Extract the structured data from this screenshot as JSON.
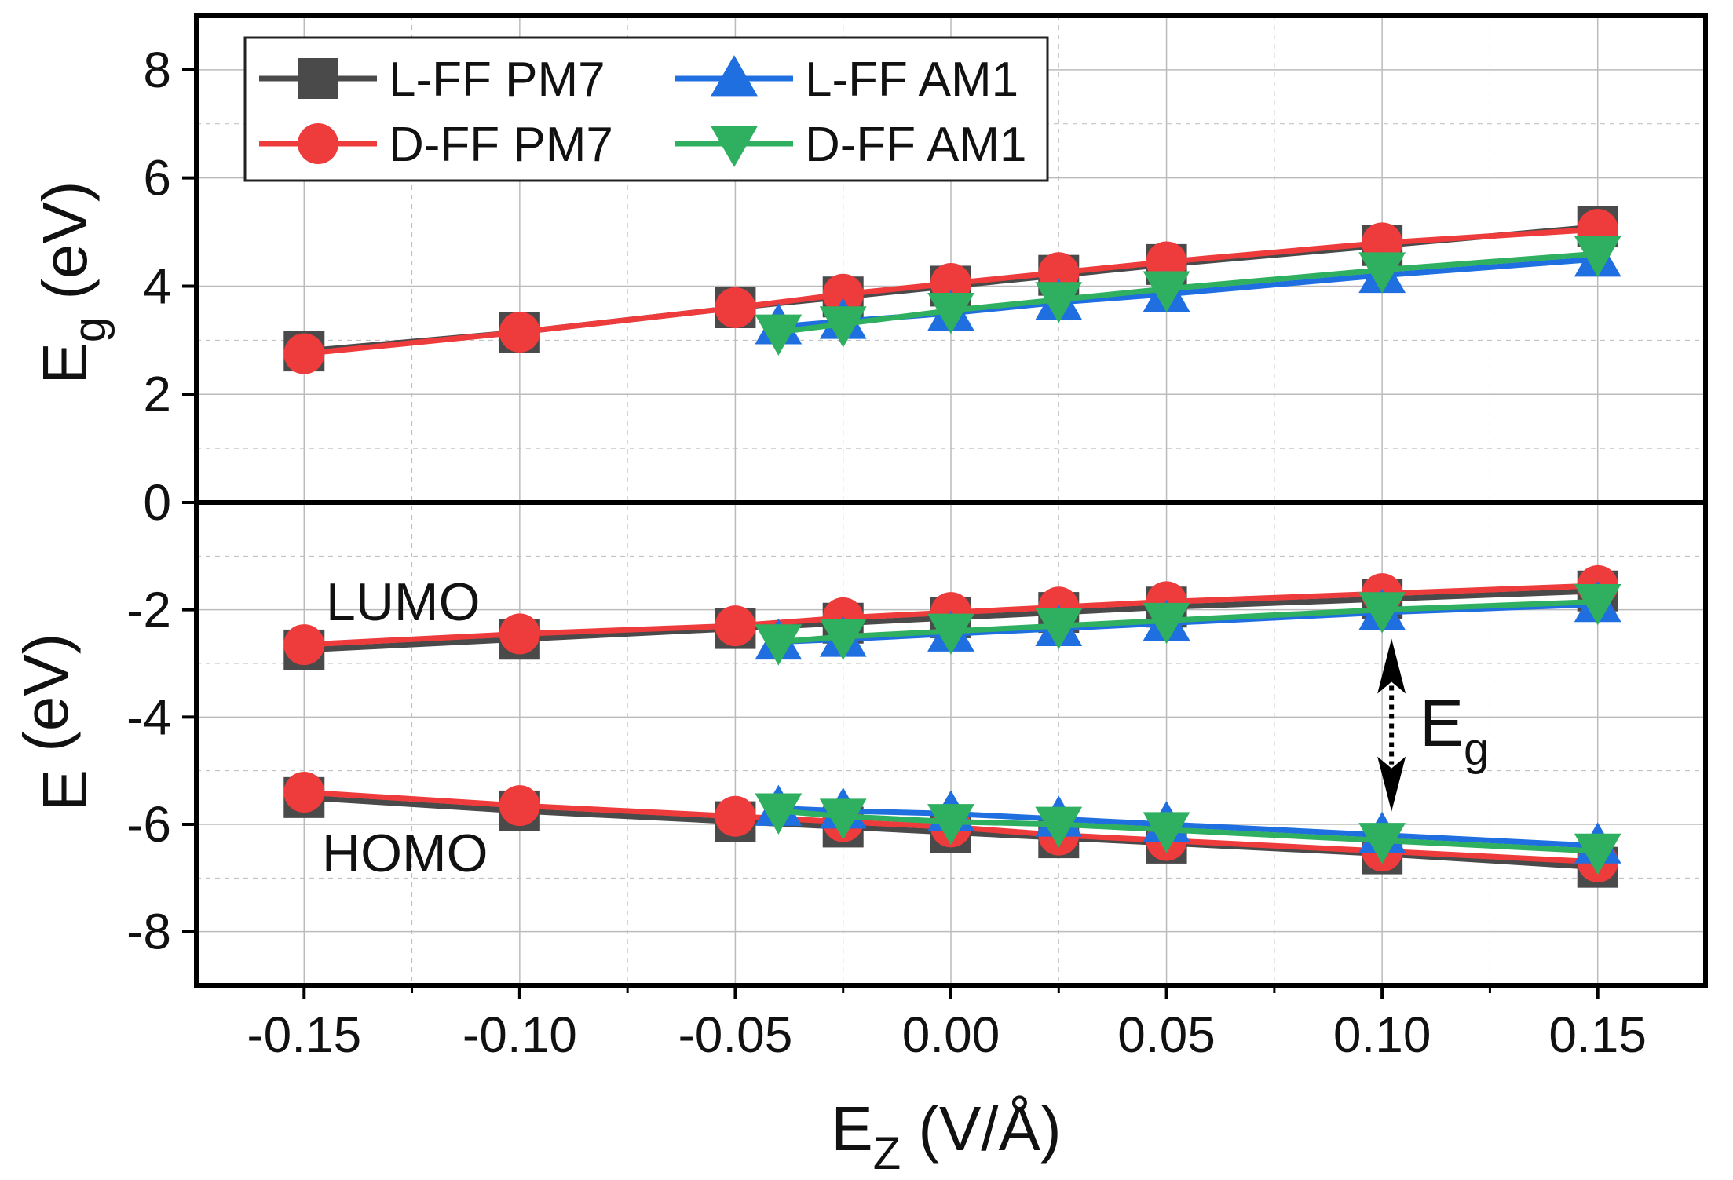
{
  "chart_data": {
    "type": "line",
    "colors": {
      "L-FF PM7": "#4a4a4a",
      "D-FF PM7": "#ee3b3b",
      "L-FF AM1": "#1f6fe0",
      "D-FF AM1": "#2fb060",
      "frame": "#000000",
      "grid": "#bbbbbb"
    },
    "xaxis": {
      "label_main": "E",
      "label_sub": "Z",
      "label_rest": " (V/Å)",
      "range": [
        -0.175,
        0.175
      ],
      "ticks": [
        -0.15,
        -0.1,
        -0.05,
        0.0,
        0.05,
        0.1,
        0.15
      ],
      "tick_labels": [
        "-0.15",
        "-0.10",
        "-0.05",
        "0.00",
        "0.05",
        "0.10",
        "0.15"
      ]
    },
    "legend": [
      {
        "label": "L-FF PM7",
        "marker": "square",
        "color": "#4a4a4a"
      },
      {
        "label": "L-FF AM1",
        "marker": "triangle-up",
        "color": "#1f6fe0"
      },
      {
        "label": "D-FF PM7",
        "marker": "circle",
        "color": "#ee3b3b"
      },
      {
        "label": "D-FF AM1",
        "marker": "triangle-down",
        "color": "#2fb060"
      }
    ],
    "panels": [
      {
        "id": "top",
        "ylabel_main": "E",
        "ylabel_sub": "g",
        "ylabel_rest": " (eV)",
        "yrange": [
          0,
          9
        ],
        "yticks": [
          0,
          2,
          4,
          6,
          8
        ],
        "ytick_labels": [
          "0",
          "2",
          "4",
          "6",
          "8"
        ],
        "series": [
          {
            "name": "L-FF PM7",
            "marker": "square",
            "color": "#4a4a4a",
            "x": [
              -0.15,
              -0.1,
              -0.05,
              -0.025,
              0.0,
              0.025,
              0.05,
              0.1,
              0.15
            ],
            "y": [
              2.8,
              3.15,
              3.6,
              3.8,
              4.0,
              4.2,
              4.4,
              4.75,
              5.1
            ]
          },
          {
            "name": "D-FF PM7",
            "marker": "circle",
            "color": "#ee3b3b",
            "x": [
              -0.15,
              -0.1,
              -0.05,
              -0.025,
              0.0,
              0.025,
              0.05,
              0.1,
              0.15
            ],
            "y": [
              2.75,
              3.15,
              3.6,
              3.85,
              4.05,
              4.25,
              4.45,
              4.8,
              5.05
            ]
          },
          {
            "name": "L-FF AM1",
            "marker": "triangle-up",
            "color": "#1f6fe0",
            "x": [
              -0.04,
              -0.025,
              0.0,
              0.025,
              0.05,
              0.1,
              0.15
            ],
            "y": [
              3.25,
              3.35,
              3.5,
              3.7,
              3.85,
              4.2,
              4.5
            ]
          },
          {
            "name": "D-FF AM1",
            "marker": "triangle-down",
            "color": "#2fb060",
            "x": [
              -0.04,
              -0.025,
              0.0,
              0.025,
              0.05,
              0.1,
              0.15
            ],
            "y": [
              3.15,
              3.3,
              3.55,
              3.75,
              3.95,
              4.3,
              4.6
            ]
          }
        ]
      },
      {
        "id": "bottom",
        "ylabel_main": "E",
        "ylabel_sub": "",
        "ylabel_rest": " (eV)",
        "yrange": [
          -9,
          0
        ],
        "yticks": [
          -8,
          -6,
          -4,
          -2
        ],
        "ytick_labels": [
          "-8",
          "-6",
          "-4",
          "-2"
        ],
        "series": [
          {
            "name": "L-FF PM7",
            "marker": "square",
            "color": "#4a4a4a",
            "x": [
              -0.15,
              -0.1,
              -0.05,
              -0.025,
              0.0,
              0.025,
              0.05,
              0.1,
              0.15
            ],
            "y": [
              -2.75,
              -2.55,
              -2.35,
              -2.25,
              -2.15,
              -2.05,
              -1.95,
              -1.8,
              -1.65
            ]
          },
          {
            "name": "D-FF PM7",
            "marker": "circle",
            "color": "#ee3b3b",
            "x": [
              -0.15,
              -0.1,
              -0.05,
              -0.025,
              0.0,
              0.025,
              0.05,
              0.1,
              0.15
            ],
            "y": [
              -2.65,
              -2.45,
              -2.3,
              -2.15,
              -2.05,
              -1.95,
              -1.85,
              -1.7,
              -1.55
            ]
          },
          {
            "name": "L-FF AM1",
            "marker": "triangle-up",
            "color": "#1f6fe0",
            "x": [
              -0.04,
              -0.025,
              0.0,
              0.025,
              0.05,
              0.1,
              0.15
            ],
            "y": [
              -2.6,
              -2.55,
              -2.45,
              -2.35,
              -2.25,
              -2.05,
              -1.9
            ]
          },
          {
            "name": "D-FF AM1",
            "marker": "triangle-down",
            "color": "#2fb060",
            "x": [
              -0.04,
              -0.025,
              0.0,
              0.025,
              0.05,
              0.1,
              0.15
            ],
            "y": [
              -2.6,
              -2.5,
              -2.4,
              -2.3,
              -2.2,
              -2.0,
              -1.85
            ]
          },
          {
            "name": "L-FF PM7",
            "marker": "square",
            "color": "#4a4a4a",
            "x": [
              -0.15,
              -0.1,
              -0.05,
              -0.025,
              0.0,
              0.025,
              0.05,
              0.1,
              0.15
            ],
            "y": [
              -5.5,
              -5.75,
              -5.95,
              -6.05,
              -6.15,
              -6.25,
              -6.35,
              -6.55,
              -6.8
            ]
          },
          {
            "name": "D-FF PM7",
            "marker": "circle",
            "color": "#ee3b3b",
            "x": [
              -0.15,
              -0.1,
              -0.05,
              -0.025,
              0.0,
              0.025,
              0.05,
              0.1,
              0.15
            ],
            "y": [
              -5.4,
              -5.65,
              -5.85,
              -5.95,
              -6.05,
              -6.2,
              -6.3,
              -6.5,
              -6.7
            ]
          },
          {
            "name": "L-FF AM1",
            "marker": "triangle-up",
            "color": "#1f6fe0",
            "x": [
              -0.04,
              -0.025,
              0.0,
              0.025,
              0.05,
              0.1,
              0.15
            ],
            "y": [
              -5.7,
              -5.75,
              -5.8,
              -5.9,
              -6.0,
              -6.2,
              -6.4
            ]
          },
          {
            "name": "D-FF AM1",
            "marker": "triangle-down",
            "color": "#2fb060",
            "x": [
              -0.04,
              -0.025,
              0.0,
              0.025,
              0.05,
              0.1,
              0.15
            ],
            "y": [
              -5.75,
              -5.85,
              -5.95,
              -6.0,
              -6.1,
              -6.3,
              -6.5
            ]
          }
        ]
      }
    ],
    "annotations": {
      "lumo": "LUMO",
      "homo": "HOMO",
      "eg_main": "E",
      "eg_sub": "g",
      "eg_arrow_x": 0.1,
      "eg_arrow_y_top": -2.1,
      "eg_arrow_y_bottom": -6.2
    }
  }
}
